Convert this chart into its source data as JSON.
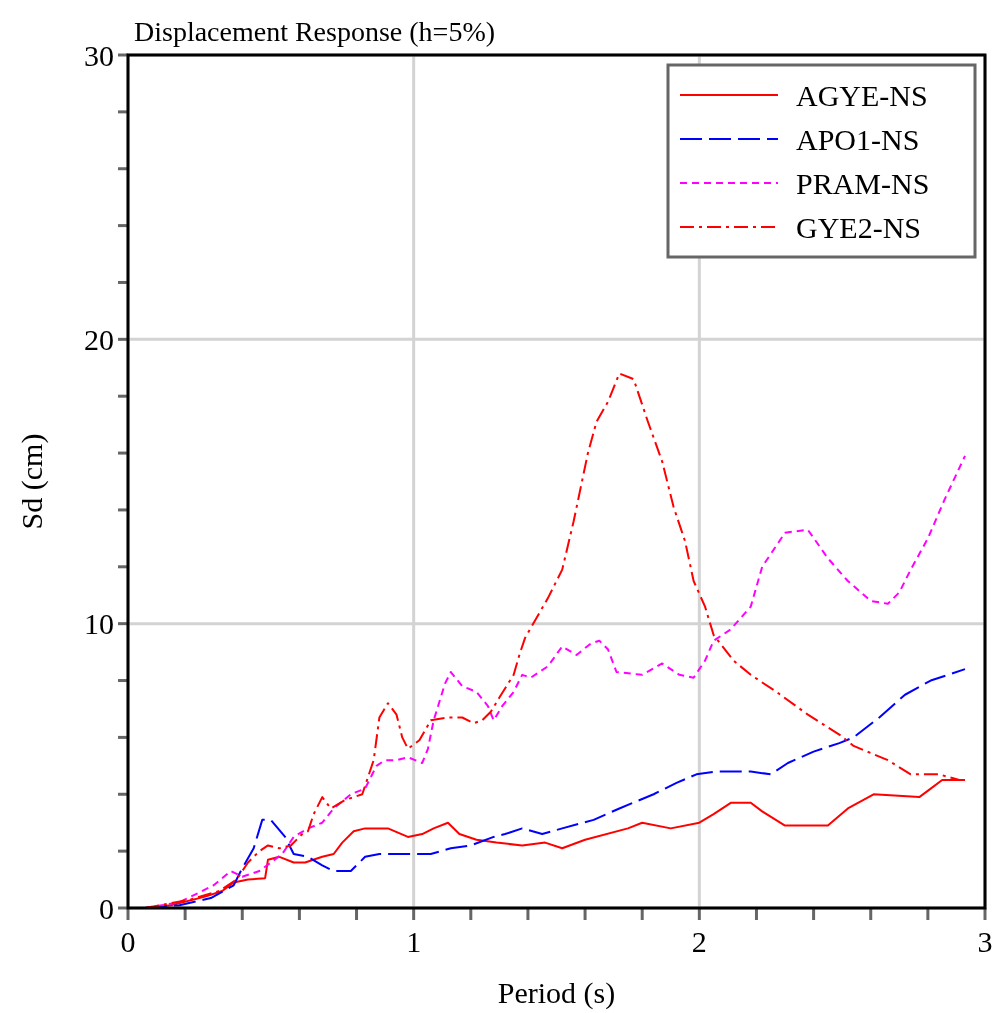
{
  "chart_data": {
    "type": "line",
    "title": "Displacement Response (h=5%)",
    "xlabel": "Period (s)",
    "ylabel": "Sd (cm)",
    "xlim": [
      0,
      3
    ],
    "ylim": [
      0,
      30
    ],
    "xticks": [
      0,
      {
        "value": 0.2,
        "label": null
      },
      {
        "value": 0.4,
        "label": null
      },
      {
        "value": 0.6,
        "label": null
      },
      {
        "value": 0.8,
        "label": null
      },
      1,
      {
        "value": 1.2,
        "label": null
      },
      {
        "value": 1.4,
        "label": null
      },
      {
        "value": 1.6,
        "label": null
      },
      {
        "value": 1.8,
        "label": null
      },
      2,
      {
        "value": 2.2,
        "label": null
      },
      {
        "value": 2.4,
        "label": null
      },
      {
        "value": 2.6,
        "label": null
      },
      {
        "value": 2.8,
        "label": null
      },
      3
    ],
    "yticks": [
      0,
      {
        "value": 2,
        "label": null
      },
      {
        "value": 4,
        "label": null
      },
      {
        "value": 6,
        "label": null
      },
      {
        "value": 8,
        "label": null
      },
      10,
      {
        "value": 12,
        "label": null
      },
      {
        "value": 14,
        "label": null
      },
      {
        "value": 16,
        "label": null
      },
      {
        "value": 18,
        "label": null
      },
      20,
      {
        "value": 22,
        "label": null
      },
      {
        "value": 24,
        "label": null
      },
      {
        "value": 26,
        "label": null
      },
      {
        "value": 28,
        "label": null
      },
      30
    ],
    "grid": true,
    "legend": "top right",
    "series": [
      {
        "name": "AGYE-NS",
        "color": "#ff0000",
        "line_style": "solid",
        "x": [
          0.06,
          0.15,
          0.27,
          0.33,
          0.37,
          0.42,
          0.48,
          0.49,
          0.53,
          0.58,
          0.62,
          0.68,
          0.72,
          0.75,
          0.79,
          0.83,
          0.91,
          0.98,
          1.03,
          1.07,
          1.12,
          1.16,
          1.22,
          1.29,
          1.38,
          1.46,
          1.52,
          1.6,
          1.75,
          1.8,
          1.9,
          2.0,
          2.05,
          2.11,
          2.18,
          2.22,
          2.3,
          2.45,
          2.52,
          2.61,
          2.77,
          2.81,
          2.85,
          2.93
        ],
        "values": [
          0,
          0.1,
          0.4,
          0.6,
          0.9,
          1.0,
          1.05,
          1.7,
          1.8,
          1.6,
          1.6,
          1.8,
          1.9,
          2.3,
          2.7,
          2.8,
          2.8,
          2.5,
          2.6,
          2.8,
          3.0,
          2.6,
          2.4,
          2.3,
          2.2,
          2.3,
          2.1,
          2.4,
          2.8,
          3.0,
          2.8,
          3.0,
          3.3,
          3.7,
          3.7,
          3.4,
          2.9,
          2.9,
          3.5,
          4.0,
          3.9,
          4.2,
          4.5,
          4.5
        ]
      },
      {
        "name": "APO1-NS",
        "color": "#0000ff",
        "line_style": "dashed",
        "x": [
          0.06,
          0.18,
          0.29,
          0.37,
          0.4,
          0.44,
          0.47,
          0.5,
          0.55,
          0.58,
          0.63,
          0.68,
          0.72,
          0.78,
          0.83,
          0.88,
          0.95,
          1.06,
          1.13,
          1.2,
          1.28,
          1.32,
          1.38,
          1.45,
          1.52,
          1.63,
          1.72,
          1.84,
          1.92,
          1.99,
          2.06,
          2.18,
          2.25,
          2.31,
          2.4,
          2.49,
          2.54,
          2.63,
          2.72,
          2.81,
          2.93
        ],
        "values": [
          0,
          0.1,
          0.35,
          0.8,
          1.4,
          2.1,
          3.1,
          3.1,
          2.5,
          1.9,
          1.8,
          1.5,
          1.3,
          1.3,
          1.8,
          1.9,
          1.9,
          1.9,
          2.1,
          2.2,
          2.5,
          2.6,
          2.8,
          2.6,
          2.8,
          3.1,
          3.5,
          4.0,
          4.4,
          4.7,
          4.8,
          4.8,
          4.7,
          5.1,
          5.5,
          5.8,
          6.0,
          6.7,
          7.5,
          8.0,
          8.4
        ]
      },
      {
        "name": "PRAM-NS",
        "color": "#ff00ff",
        "line_style": "dotted",
        "x": [
          0.06,
          0.18,
          0.3,
          0.36,
          0.4,
          0.46,
          0.5,
          0.54,
          0.58,
          0.63,
          0.68,
          0.72,
          0.78,
          0.83,
          0.87,
          0.9,
          0.94,
          0.98,
          1.03,
          1.05,
          1.07,
          1.11,
          1.13,
          1.17,
          1.22,
          1.26,
          1.28,
          1.31,
          1.35,
          1.38,
          1.41,
          1.47,
          1.52,
          1.57,
          1.62,
          1.65,
          1.68,
          1.71,
          1.8,
          1.87,
          1.93,
          1.98,
          2.02,
          2.05,
          2.11,
          2.18,
          2.22,
          2.28,
          2.3,
          2.38,
          2.45,
          2.52,
          2.6,
          2.66,
          2.7,
          2.74,
          2.8,
          2.86,
          2.93
        ],
        "values": [
          0,
          0.2,
          0.8,
          1.3,
          1.1,
          1.3,
          1.6,
          1.9,
          2.5,
          2.8,
          3.0,
          3.5,
          4.0,
          4.2,
          5.0,
          5.2,
          5.2,
          5.3,
          5.1,
          5.6,
          6.6,
          7.9,
          8.3,
          7.8,
          7.6,
          7.1,
          6.6,
          7.1,
          7.6,
          8.2,
          8.1,
          8.5,
          9.2,
          8.9,
          9.3,
          9.4,
          9.1,
          8.3,
          8.2,
          8.6,
          8.2,
          8.1,
          8.7,
          9.4,
          9.8,
          10.6,
          12.0,
          12.9,
          13.2,
          13.3,
          12.3,
          11.5,
          10.8,
          10.7,
          11.1,
          11.9,
          13.0,
          14.4,
          15.9
        ]
      },
      {
        "name": "GYE2-NS",
        "color": "#ff0000",
        "line_style": "dashdot",
        "x": [
          0.06,
          0.22,
          0.32,
          0.38,
          0.42,
          0.46,
          0.49,
          0.53,
          0.57,
          0.61,
          0.63,
          0.65,
          0.68,
          0.71,
          0.76,
          0.82,
          0.86,
          0.88,
          0.91,
          0.94,
          0.96,
          0.98,
          1.02,
          1.06,
          1.12,
          1.17,
          1.21,
          1.24,
          1.27,
          1.3,
          1.35,
          1.37,
          1.39,
          1.43,
          1.47,
          1.52,
          1.56,
          1.61,
          1.64,
          1.68,
          1.72,
          1.77,
          1.82,
          1.87,
          1.91,
          1.95,
          1.98,
          2.02,
          2.05,
          2.12,
          2.18,
          2.27,
          2.38,
          2.49,
          2.54,
          2.66,
          2.74,
          2.84,
          2.91
        ],
        "values": [
          0,
          0.3,
          0.6,
          1.0,
          1.6,
          2.0,
          2.2,
          2.1,
          2.2,
          2.6,
          2.7,
          3.3,
          3.9,
          3.5,
          3.8,
          4.0,
          5.2,
          6.7,
          7.2,
          6.8,
          6.0,
          5.6,
          5.9,
          6.6,
          6.7,
          6.7,
          6.5,
          6.6,
          6.9,
          7.4,
          8.2,
          8.9,
          9.5,
          10.2,
          10.9,
          11.9,
          13.6,
          16.0,
          17.1,
          17.8,
          18.8,
          18.6,
          17.1,
          15.7,
          14.1,
          12.9,
          11.5,
          10.6,
          9.6,
          8.7,
          8.2,
          7.6,
          6.8,
          6.1,
          5.7,
          5.2,
          4.7,
          4.7,
          4.5
        ]
      }
    ]
  }
}
